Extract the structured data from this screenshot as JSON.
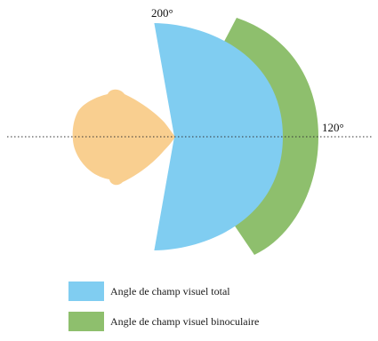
{
  "figure": {
    "angles": {
      "total": "200°",
      "binocular": "120°"
    },
    "colors": {
      "head": "#f9cf90",
      "total_field": "#80cdf1",
      "binocular_field": "#8ebf6d",
      "axis_line": "#333333"
    },
    "icons": {
      "head": "head-top-view-icon"
    }
  },
  "legend": {
    "items": [
      {
        "label": "Angle de champ visuel total",
        "color": "#80cdf1"
      },
      {
        "label": "Angle de champ visuel binoculaire",
        "color": "#8ebf6d"
      }
    ]
  }
}
